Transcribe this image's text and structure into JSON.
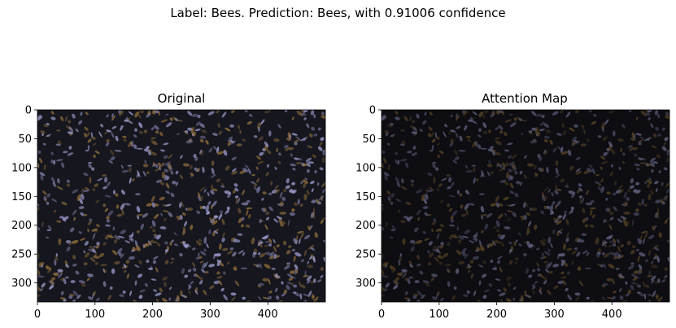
{
  "suptitle": "Label: Bees. Prediction: Bees, with 0.91006 confidence",
  "panels": [
    {
      "title": "Original",
      "image": "bee-swarm-photo",
      "yticks": [
        "0",
        "50",
        "100",
        "150",
        "200",
        "250",
        "300"
      ],
      "xticks": [
        "0",
        "100",
        "200",
        "300",
        "400"
      ]
    },
    {
      "title": "Attention Map",
      "image": "bee-swarm-attention-overlay",
      "yticks": [
        "0",
        "50",
        "100",
        "150",
        "200",
        "250",
        "300"
      ],
      "xticks": [
        "0",
        "100",
        "200",
        "300",
        "400"
      ]
    }
  ],
  "image_extent": {
    "width": 500,
    "height": 333
  },
  "colors": {
    "background": "#ffffff",
    "image_base": "#15161e",
    "bee_body": "#8a6a3a",
    "bee_wing": "#9a98c8"
  }
}
